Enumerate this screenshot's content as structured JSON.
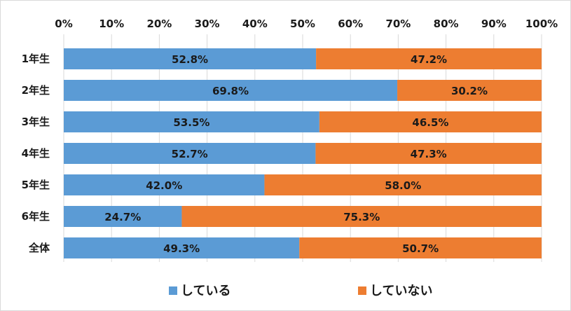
{
  "chart_data": {
    "type": "bar",
    "orientation": "horizontal",
    "stacked": "percent",
    "categories": [
      "1年生",
      "2年生",
      "3年生",
      "4年生",
      "5年生",
      "6年生",
      "全体"
    ],
    "series": [
      {
        "name": "している",
        "color": "#5b9bd5",
        "values": [
          52.8,
          69.8,
          53.5,
          52.7,
          42.0,
          24.7,
          49.3
        ],
        "labels": [
          "52.8%",
          "69.8%",
          "53.5%",
          "52.7%",
          "42.0%",
          "24.7%",
          "49.3%"
        ]
      },
      {
        "name": "していない",
        "color": "#ed7d31",
        "values": [
          47.2,
          30.2,
          46.5,
          47.3,
          58.0,
          75.3,
          50.7
        ],
        "labels": [
          "47.2%",
          "30.2%",
          "46.5%",
          "47.3%",
          "58.0%",
          "75.3%",
          "50.7%"
        ]
      }
    ],
    "xlim": [
      0,
      100
    ],
    "xticks": [
      "0%",
      "10%",
      "20%",
      "30%",
      "40%",
      "50%",
      "60%",
      "70%",
      "80%",
      "90%",
      "100%"
    ],
    "x_axis_position": "top",
    "grid": true,
    "legend_position": "bottom",
    "title": "",
    "xlabel": "",
    "ylabel": ""
  }
}
